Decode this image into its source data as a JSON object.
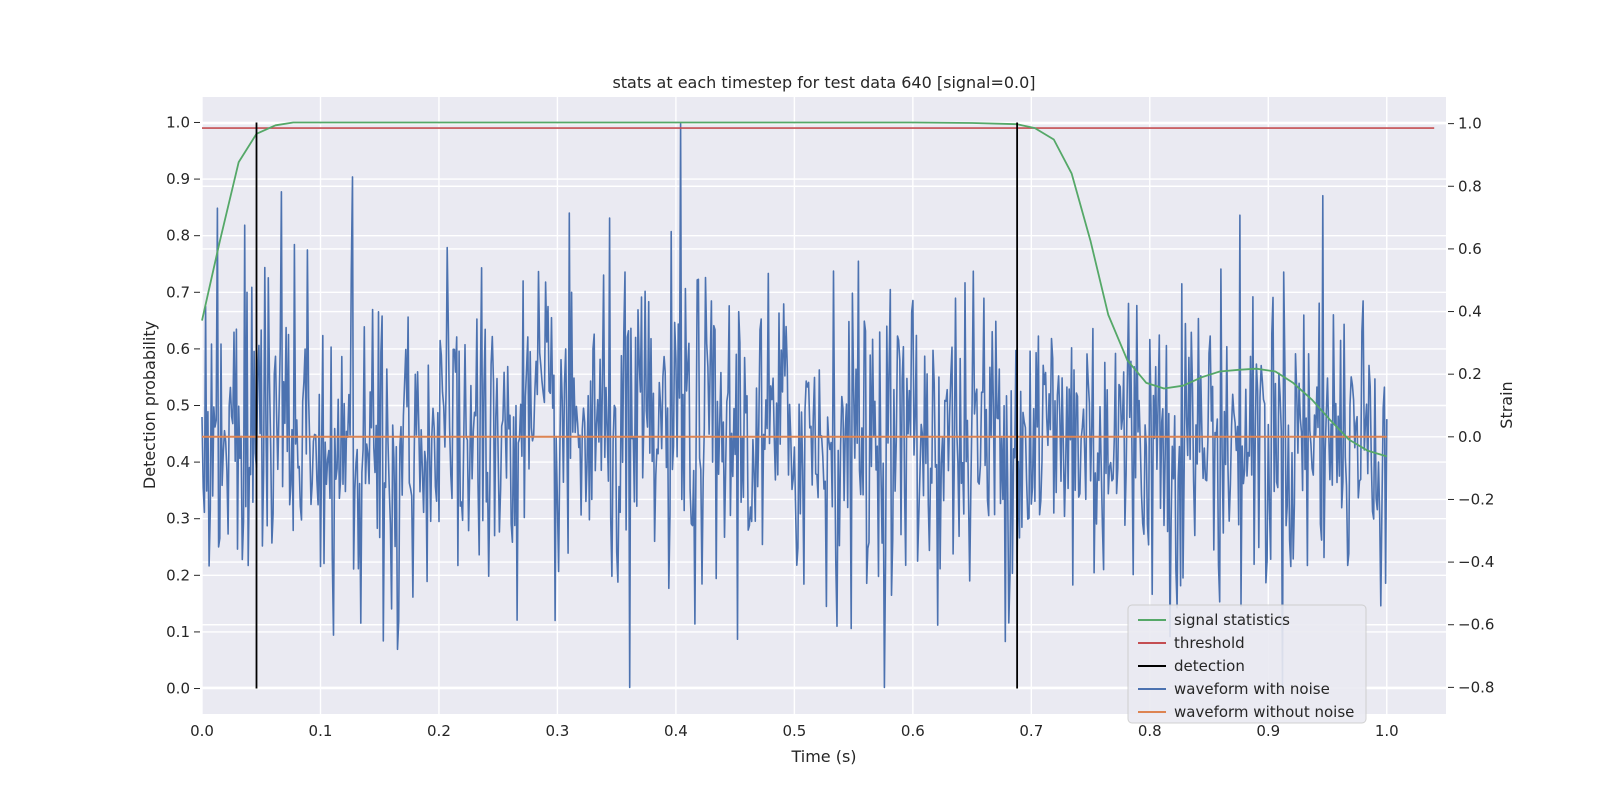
{
  "chart_data": {
    "type": "line",
    "title": "stats at each timestep for test data 640 [signal=0.0]",
    "xlabel": "Time (s)",
    "ylabel": "Detection probability",
    "y2label": "Strain",
    "xlim": [
      0.0,
      1.05
    ],
    "ylim": [
      -0.045,
      1.045
    ],
    "y2lim": [
      -0.885,
      1.085
    ],
    "x_ticks": [
      "0.0",
      "0.1",
      "0.2",
      "0.3",
      "0.4",
      "0.5",
      "0.6",
      "0.7",
      "0.8",
      "0.9",
      "1.0"
    ],
    "y_ticks": [
      "0.0",
      "0.1",
      "0.2",
      "0.3",
      "0.4",
      "0.5",
      "0.6",
      "0.7",
      "0.8",
      "0.9",
      "1.0"
    ],
    "y2_ticks": [
      "−0.8",
      "−0.6",
      "−0.4",
      "−0.2",
      "0.0",
      "0.2",
      "0.4",
      "0.6",
      "0.8",
      "1.0"
    ],
    "grid": true,
    "legend_position": "lower-right",
    "legend": [
      {
        "label": "signal statistics",
        "color": "#55a868"
      },
      {
        "label": "threshold",
        "color": "#c44e52"
      },
      {
        "label": "detection",
        "color": "#000000"
      },
      {
        "label": "waveform with noise",
        "color": "#4c72b0"
      },
      {
        "label": "waveform without noise",
        "color": "#dd8452"
      }
    ],
    "series": [
      {
        "name": "signal statistics",
        "axis": "left",
        "color": "#55a868",
        "x": [
          0.0,
          0.015,
          0.031,
          0.046,
          0.062,
          0.077,
          0.093,
          0.2,
          0.4,
          0.6,
          0.65,
          0.688,
          0.703,
          0.719,
          0.734,
          0.75,
          0.765,
          0.781,
          0.797,
          0.812,
          0.828,
          0.844,
          0.859,
          0.875,
          0.89,
          0.906,
          0.921,
          0.937,
          0.952,
          0.968,
          0.984,
          1.0
        ],
        "values": [
          0.65,
          0.79,
          0.93,
          0.98,
          0.995,
          1.0,
          1.0,
          1.0,
          1.0,
          1.0,
          0.999,
          0.997,
          0.99,
          0.97,
          0.91,
          0.79,
          0.66,
          0.58,
          0.54,
          0.53,
          0.535,
          0.55,
          0.56,
          0.563,
          0.565,
          0.56,
          0.54,
          0.51,
          0.475,
          0.44,
          0.42,
          0.41
        ]
      },
      {
        "name": "threshold",
        "axis": "left",
        "color": "#c44e52",
        "x": [
          0.0,
          1.04
        ],
        "values": [
          0.99,
          0.99
        ]
      },
      {
        "name": "waveform without noise",
        "axis": "right",
        "color": "#dd8452",
        "x": [
          0.0,
          1.0
        ],
        "values": [
          0.0,
          0.0
        ]
      },
      {
        "name": "waveform with noise",
        "axis": "right",
        "color": "#4c72b0",
        "generated": "random",
        "x_range": [
          0.0,
          1.0
        ],
        "samples": 1000,
        "std": 0.25,
        "min": -0.8,
        "max": 1.0,
        "peaks": [
          {
            "x": 0.404,
            "value": 1.0
          },
          {
            "x": 0.013,
            "value": 0.73
          },
          {
            "x": 0.127,
            "value": 0.83
          },
          {
            "x": 0.361,
            "value": -0.8
          },
          {
            "x": 0.946,
            "value": 0.77
          }
        ]
      }
    ],
    "detections": [
      0.046,
      0.688
    ]
  }
}
